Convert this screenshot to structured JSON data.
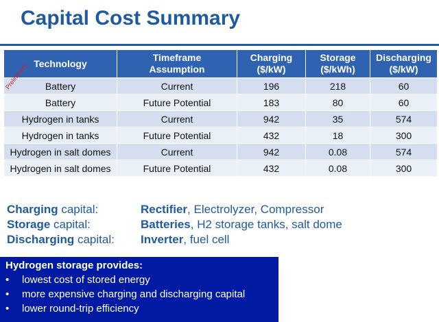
{
  "title": "Capital Cost Summary",
  "stamp": "Preliminary",
  "table": {
    "headers": [
      [
        "Technology"
      ],
      [
        "Timeframe",
        "Assumption"
      ],
      [
        "Charging",
        "($/kW)"
      ],
      [
        "Storage",
        "($/kWh)"
      ],
      [
        "Discharging",
        "($/kW)"
      ]
    ],
    "rows": [
      [
        "Battery",
        "Current",
        "196",
        "218",
        "60"
      ],
      [
        "Battery",
        "Future Potential",
        "183",
        "80",
        "60"
      ],
      [
        "Hydrogen in tanks",
        "Current",
        "942",
        "35",
        "574"
      ],
      [
        "Hydrogen in tanks",
        "Future Potential",
        "432",
        "18",
        "300"
      ],
      [
        "Hydrogen in salt domes",
        "Current",
        "942",
        "0.08",
        "574"
      ],
      [
        "Hydrogen in salt domes",
        "Future Potential",
        "432",
        "0.08",
        "300"
      ]
    ]
  },
  "capital": [
    {
      "bold": "Charging",
      "label": " capital:",
      "key": "Rectifier",
      "rest": ", Electrolyzer, Compressor"
    },
    {
      "bold": "Storage",
      "label": " capital:",
      "key": "Batteries",
      "rest": ", H2 storage tanks, salt dome"
    },
    {
      "bold": "Discharging",
      "label": " capital:",
      "key": "Inverter",
      "rest": ", fuel cell"
    }
  ],
  "box": {
    "title": "Hydrogen storage provides:",
    "bullets": [
      "lowest cost of stored energy",
      "more expensive charging and discharging capital",
      "lower round-trip efficiency"
    ]
  },
  "colors": {
    "title": "#1f5a9e",
    "header_bg": "#2f63b2",
    "row_odd": "#d4deef",
    "row_even": "#eaf0f8",
    "box_bg": "#001aa3",
    "stamp": "#cc2222"
  }
}
